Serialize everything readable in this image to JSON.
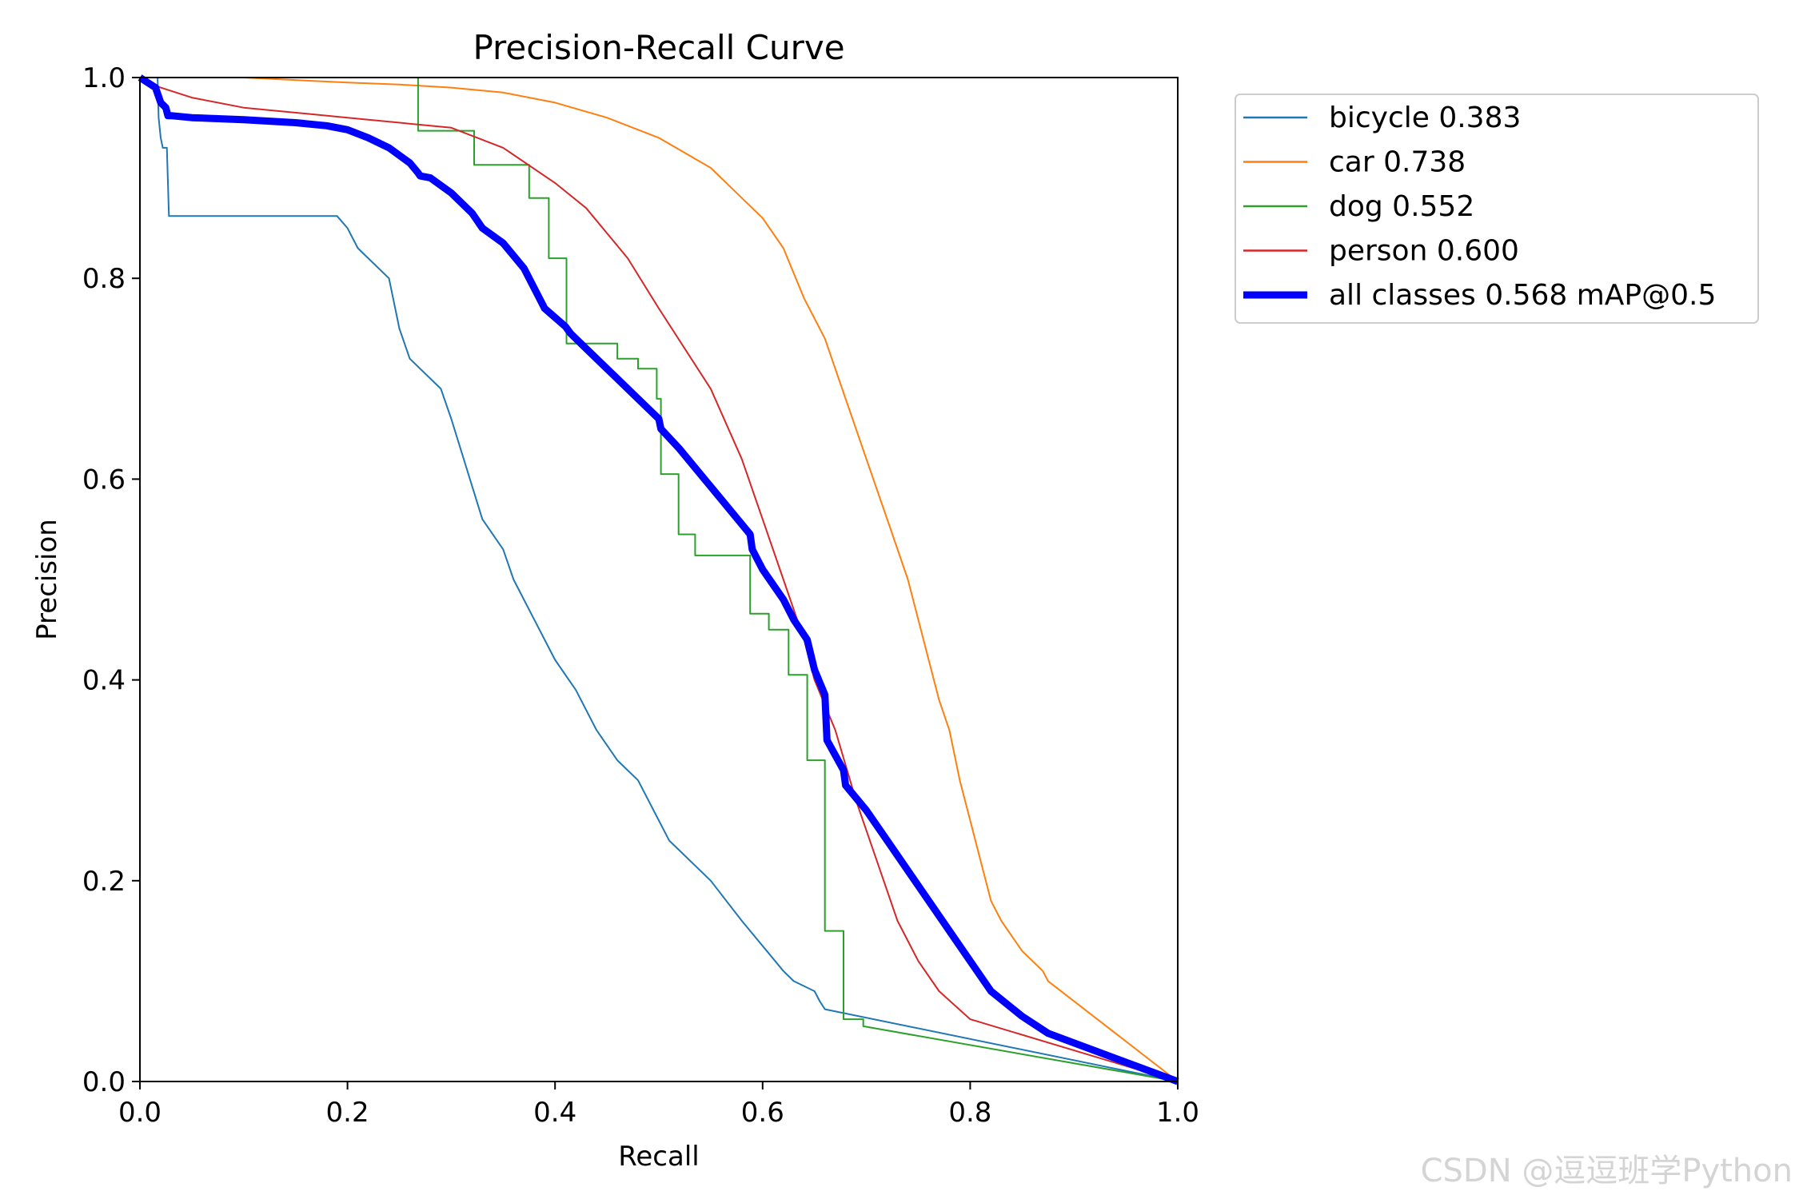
{
  "watermark": "CSDN @逗逗班学Python",
  "chart_data": {
    "type": "line",
    "title": "Precision-Recall Curve",
    "xlabel": "Recall",
    "ylabel": "Precision",
    "xlim": [
      0,
      1
    ],
    "ylim": [
      0,
      1
    ],
    "xticks": [
      "0.0",
      "0.2",
      "0.4",
      "0.6",
      "0.8",
      "1.0"
    ],
    "yticks": [
      "0.0",
      "0.2",
      "0.4",
      "0.6",
      "0.8",
      "1.0"
    ],
    "grid": false,
    "legend_position": "outside-right",
    "series": [
      {
        "name": "bicycle 0.383",
        "color": "#1f77b4",
        "width": 2,
        "x": [
          0,
          0.017,
          0.018,
          0.02,
          0.022,
          0.026,
          0.028,
          0.19,
          0.2,
          0.21,
          0.22,
          0.24,
          0.25,
          0.26,
          0.29,
          0.3,
          0.33,
          0.35,
          0.36,
          0.38,
          0.4,
          0.42,
          0.44,
          0.46,
          0.48,
          0.51,
          0.52,
          0.55,
          0.58,
          0.62,
          0.63,
          0.65,
          0.655,
          0.66,
          1.0
        ],
        "y": [
          1.0,
          1.0,
          0.96,
          0.94,
          0.93,
          0.93,
          0.862,
          0.862,
          0.85,
          0.83,
          0.82,
          0.8,
          0.75,
          0.72,
          0.69,
          0.66,
          0.56,
          0.53,
          0.5,
          0.46,
          0.42,
          0.39,
          0.35,
          0.32,
          0.3,
          0.24,
          0.23,
          0.2,
          0.16,
          0.11,
          0.1,
          0.09,
          0.08,
          0.072,
          0.0
        ]
      },
      {
        "name": "car 0.738",
        "color": "#ff7f0e",
        "width": 2,
        "x": [
          0,
          0.1,
          0.2,
          0.25,
          0.3,
          0.35,
          0.4,
          0.45,
          0.5,
          0.55,
          0.58,
          0.6,
          0.62,
          0.64,
          0.66,
          0.68,
          0.7,
          0.72,
          0.74,
          0.76,
          0.77,
          0.78,
          0.79,
          0.8,
          0.81,
          0.82,
          0.83,
          0.85,
          0.87,
          0.875,
          1.0
        ],
        "y": [
          1.0,
          1.0,
          0.995,
          0.993,
          0.99,
          0.985,
          0.975,
          0.96,
          0.94,
          0.91,
          0.88,
          0.86,
          0.83,
          0.78,
          0.74,
          0.68,
          0.62,
          0.56,
          0.5,
          0.42,
          0.38,
          0.35,
          0.3,
          0.26,
          0.22,
          0.18,
          0.16,
          0.13,
          0.11,
          0.1,
          0.0
        ]
      },
      {
        "name": "dog 0.552",
        "color": "#2ca02c",
        "width": 2,
        "x": [
          0,
          0.268,
          0.268,
          0.322,
          0.322,
          0.375,
          0.375,
          0.394,
          0.394,
          0.411,
          0.411,
          0.46,
          0.46,
          0.48,
          0.48,
          0.498,
          0.498,
          0.502,
          0.502,
          0.519,
          0.519,
          0.535,
          0.535,
          0.588,
          0.588,
          0.606,
          0.606,
          0.625,
          0.625,
          0.643,
          0.643,
          0.66,
          0.66,
          0.678,
          0.678,
          0.697,
          0.697,
          1.0
        ],
        "y": [
          1.0,
          1.0,
          0.947,
          0.947,
          0.913,
          0.913,
          0.88,
          0.88,
          0.82,
          0.82,
          0.735,
          0.735,
          0.72,
          0.72,
          0.71,
          0.71,
          0.68,
          0.68,
          0.605,
          0.605,
          0.545,
          0.545,
          0.524,
          0.524,
          0.466,
          0.466,
          0.45,
          0.45,
          0.405,
          0.405,
          0.32,
          0.32,
          0.15,
          0.15,
          0.062,
          0.062,
          0.055,
          0.0
        ]
      },
      {
        "name": "person 0.600",
        "color": "#d62728",
        "width": 2,
        "x": [
          0,
          0.02,
          0.05,
          0.1,
          0.2,
          0.3,
          0.35,
          0.4,
          0.43,
          0.47,
          0.5,
          0.55,
          0.58,
          0.6,
          0.62,
          0.64,
          0.65,
          0.67,
          0.69,
          0.71,
          0.73,
          0.75,
          0.77,
          0.8,
          1.0
        ],
        "y": [
          1.0,
          0.99,
          0.98,
          0.97,
          0.96,
          0.95,
          0.93,
          0.895,
          0.87,
          0.82,
          0.77,
          0.69,
          0.62,
          0.56,
          0.5,
          0.44,
          0.4,
          0.35,
          0.28,
          0.22,
          0.16,
          0.12,
          0.09,
          0.062,
          0.0
        ]
      },
      {
        "name": "all classes 0.568 mAP@0.5",
        "color": "#0000ff",
        "width": 9,
        "x": [
          0,
          0.015,
          0.02,
          0.025,
          0.027,
          0.03,
          0.05,
          0.1,
          0.15,
          0.18,
          0.2,
          0.22,
          0.24,
          0.26,
          0.268,
          0.27,
          0.28,
          0.3,
          0.32,
          0.33,
          0.35,
          0.37,
          0.375,
          0.39,
          0.41,
          0.415,
          0.43,
          0.45,
          0.47,
          0.48,
          0.5,
          0.502,
          0.52,
          0.54,
          0.56,
          0.588,
          0.59,
          0.6,
          0.62,
          0.63,
          0.643,
          0.65,
          0.66,
          0.662,
          0.678,
          0.68,
          0.7,
          0.72,
          0.74,
          0.76,
          0.78,
          0.8,
          0.82,
          0.85,
          0.875,
          1.0
        ],
        "y": [
          1.0,
          0.99,
          0.975,
          0.97,
          0.962,
          0.962,
          0.96,
          0.958,
          0.955,
          0.952,
          0.948,
          0.94,
          0.93,
          0.915,
          0.905,
          0.902,
          0.9,
          0.885,
          0.865,
          0.85,
          0.835,
          0.81,
          0.8,
          0.77,
          0.752,
          0.745,
          0.73,
          0.71,
          0.69,
          0.68,
          0.66,
          0.65,
          0.63,
          0.605,
          0.58,
          0.545,
          0.53,
          0.51,
          0.48,
          0.46,
          0.44,
          0.41,
          0.385,
          0.34,
          0.31,
          0.295,
          0.27,
          0.24,
          0.21,
          0.18,
          0.15,
          0.12,
          0.09,
          0.065,
          0.048,
          0.0
        ]
      }
    ]
  }
}
